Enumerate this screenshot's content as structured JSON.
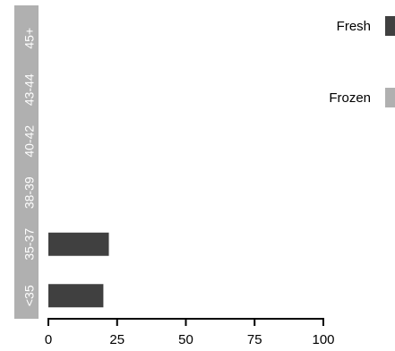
{
  "chart_data": {
    "type": "bar",
    "orientation": "horizontal",
    "categories": [
      "<35",
      "35-37",
      "38-39",
      "40-42",
      "43-44",
      "45+"
    ],
    "series": [
      {
        "name": "Fresh",
        "color": "#404040",
        "values": [
          20,
          22,
          0,
          0,
          0,
          0
        ]
      },
      {
        "name": "Frozen",
        "color": "#b0b0b0",
        "values": [
          0,
          0,
          0,
          0,
          0,
          0
        ]
      }
    ],
    "xlim": [
      0,
      100
    ],
    "xticks": [
      "0",
      "25",
      "50",
      "75",
      "100"
    ],
    "title": "",
    "xlabel": "",
    "ylabel": "",
    "grid": false,
    "legend_position": "top-right",
    "category_band_color": "#b0b0b0",
    "axis_color": "#000000"
  }
}
